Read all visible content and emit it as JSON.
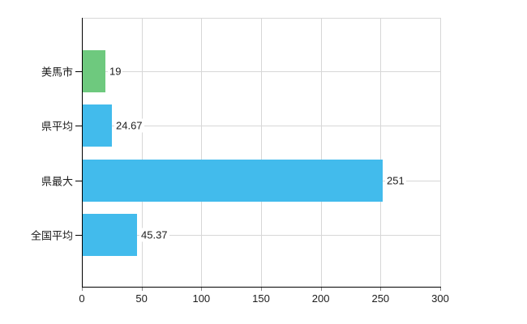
{
  "chart_data": {
    "type": "bar",
    "orientation": "horizontal",
    "title": "",
    "xlabel": "",
    "ylabel": "",
    "categories": [
      "美馬市",
      "県平均",
      "県最大",
      "全国平均"
    ],
    "values": [
      19,
      24.67,
      251,
      45.37
    ],
    "value_labels": [
      "19",
      "24.67",
      "251",
      "45.37"
    ],
    "bar_colors": [
      "#6ec97e",
      "#42bbec",
      "#42bbec",
      "#42bbec"
    ],
    "xlim": [
      0,
      300
    ],
    "x_ticks": [
      "0",
      "50",
      "100",
      "150",
      "200",
      "250",
      "300"
    ],
    "grid": true,
    "legend_position": "none",
    "colors": {
      "highlight_bar": "#6ec97e",
      "default_bar": "#42bbec",
      "grid": "#d7d7d7",
      "axis": "#000000",
      "tick": "#8a8a8a",
      "text": "#1c1c1c",
      "background": "#ffffff"
    }
  }
}
